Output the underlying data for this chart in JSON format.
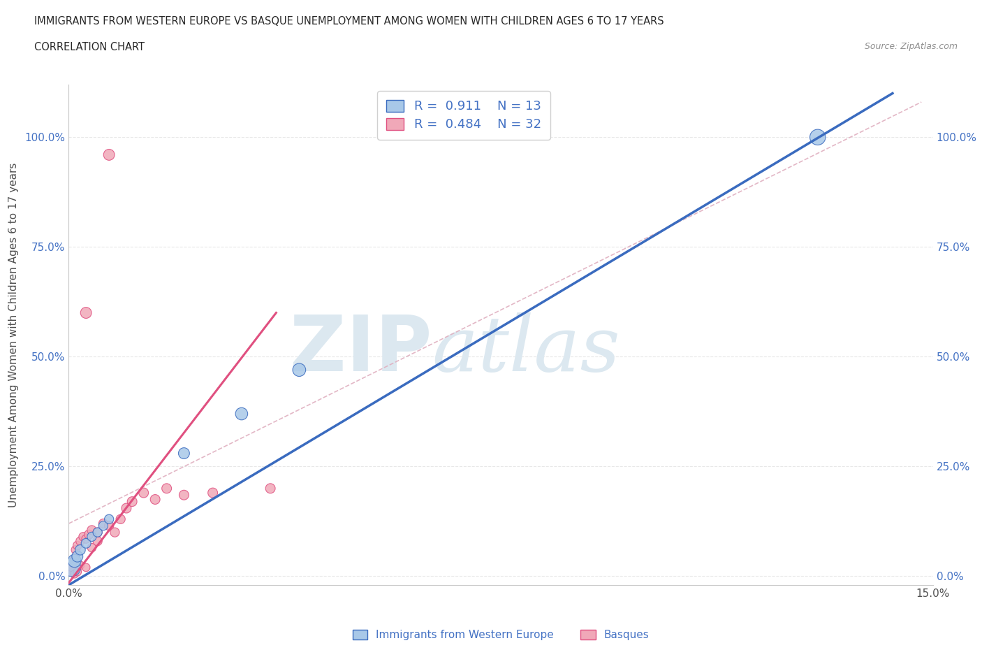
{
  "title_line1": "IMMIGRANTS FROM WESTERN EUROPE VS BASQUE UNEMPLOYMENT AMONG WOMEN WITH CHILDREN AGES 6 TO 17 YEARS",
  "title_line2": "CORRELATION CHART",
  "source": "Source: ZipAtlas.com",
  "ylabel": "Unemployment Among Women with Children Ages 6 to 17 years",
  "xlim": [
    0.0,
    0.15
  ],
  "ylim": [
    -0.02,
    1.12
  ],
  "yticks": [
    0.0,
    0.25,
    0.5,
    0.75,
    1.0
  ],
  "ytick_labels": [
    "0.0%",
    "25.0%",
    "50.0%",
    "75.0%",
    "100.0%"
  ],
  "xticks": [
    0.0,
    0.05,
    0.1,
    0.15
  ],
  "xtick_labels": [
    "0.0%",
    "",
    "",
    "15.0%"
  ],
  "watermark_zip": "ZIP",
  "watermark_atlas": "atlas",
  "legend_R1": "0.911",
  "legend_N1": "13",
  "legend_R2": "0.484",
  "legend_N2": "32",
  "label_blue": "Immigrants from Western Europe",
  "label_pink": "Basques",
  "blue_scatter_x": [
    0.0005,
    0.001,
    0.0015,
    0.002,
    0.003,
    0.004,
    0.005,
    0.006,
    0.007,
    0.02,
    0.03,
    0.04,
    0.13
  ],
  "blue_scatter_y": [
    0.02,
    0.035,
    0.045,
    0.06,
    0.075,
    0.09,
    0.1,
    0.115,
    0.13,
    0.28,
    0.37,
    0.47,
    1.0
  ],
  "blue_scatter_s": [
    350,
    180,
    130,
    110,
    100,
    90,
    90,
    90,
    90,
    130,
    160,
    180,
    260
  ],
  "pink_scatter_x": [
    0.0003,
    0.0005,
    0.0007,
    0.001,
    0.001,
    0.0012,
    0.0015,
    0.0015,
    0.002,
    0.002,
    0.0025,
    0.003,
    0.003,
    0.0035,
    0.004,
    0.004,
    0.005,
    0.005,
    0.006,
    0.007,
    0.008,
    0.009,
    0.01,
    0.011,
    0.013,
    0.015,
    0.017,
    0.02,
    0.025,
    0.035,
    0.003,
    0.007
  ],
  "pink_scatter_y": [
    0.01,
    0.02,
    0.03,
    0.005,
    0.04,
    0.06,
    0.01,
    0.07,
    0.025,
    0.08,
    0.09,
    0.02,
    0.085,
    0.095,
    0.065,
    0.105,
    0.08,
    0.1,
    0.12,
    0.115,
    0.1,
    0.13,
    0.155,
    0.17,
    0.19,
    0.175,
    0.2,
    0.185,
    0.19,
    0.2,
    0.6,
    0.96
  ],
  "pink_scatter_s": [
    70,
    70,
    70,
    70,
    70,
    80,
    70,
    80,
    70,
    80,
    80,
    70,
    80,
    90,
    80,
    90,
    90,
    90,
    90,
    90,
    90,
    90,
    100,
    100,
    100,
    100,
    100,
    100,
    100,
    100,
    130,
    130
  ],
  "blue_line_x0": 0.0,
  "blue_line_x1": 0.143,
  "blue_line_y0": -0.02,
  "blue_line_y1": 1.1,
  "pink_line_x0": 0.0,
  "pink_line_x1": 0.036,
  "pink_line_y0": -0.015,
  "pink_line_y1": 0.6,
  "diag_line_x0": 0.0,
  "diag_line_x1": 0.148,
  "diag_line_y0": 0.12,
  "diag_line_y1": 1.08,
  "blue_line_color": "#3a6bbf",
  "pink_line_color": "#e05080",
  "diag_line_color": "#e0b0c0",
  "grid_color": "#e8e8e8",
  "background_color": "#ffffff",
  "title_color": "#282828",
  "axis_label_color": "#505050",
  "tick_color_y": "#4472c4",
  "tick_color_x": "#505050",
  "watermark_color": "#dce8f0",
  "blue_face": "#a8c8e8",
  "blue_edge": "#3a6bbf",
  "pink_face": "#f0a8b8",
  "pink_edge": "#e05080"
}
